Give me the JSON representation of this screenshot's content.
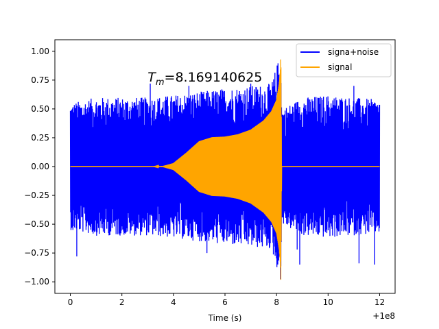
{
  "chart_data": {
    "type": "line",
    "title": "",
    "xlabel": "Time (s)",
    "ylabel": "",
    "x_offset_label": "+1e8",
    "xlim": [
      -0.6,
      12.6
    ],
    "ylim": [
      -1.1,
      1.1
    ],
    "x_ticks": [
      0,
      2,
      4,
      6,
      8,
      10,
      12
    ],
    "x_tick_labels": [
      "0",
      "2",
      "4",
      "6",
      "8",
      "10",
      "12"
    ],
    "y_ticks": [
      1.0,
      0.75,
      0.5,
      0.25,
      0.0,
      -0.25,
      -0.5,
      -0.75,
      -1.0
    ],
    "y_tick_labels": [
      "1.00",
      "0.75",
      "0.50",
      "0.25",
      "0.00",
      "−0.25",
      "−0.50",
      "−0.75",
      "−1.00"
    ],
    "annotation": {
      "symbol": "T",
      "subscript": "m",
      "value_text": "=8.169140625",
      "x": 3.0,
      "y": 0.78
    },
    "legend": {
      "placement": "top-right",
      "entries": [
        "signa+noise",
        "signal"
      ]
    },
    "series": [
      {
        "name": "signa+noise",
        "color": "#0000ff",
        "description": "Dense noisy oscillation from 0 to 12, amplitude mostly within ±0.5 with spikes to about ±0.75, plus the signal chirp",
        "x_range": [
          0,
          12
        ],
        "envelope_x": [
          0,
          1,
          2,
          3,
          4,
          5,
          6,
          7,
          7.8,
          8.17,
          8.2,
          9,
          10,
          11,
          12
        ],
        "envelope_upper": [
          0.55,
          0.6,
          0.6,
          0.6,
          0.62,
          0.65,
          0.68,
          0.7,
          0.72,
          1.0,
          0.5,
          0.6,
          0.62,
          0.6,
          0.58
        ],
        "envelope_lower": [
          -0.55,
          -0.6,
          -0.6,
          -0.6,
          -0.62,
          -0.65,
          -0.68,
          -0.7,
          -0.72,
          -1.0,
          -0.5,
          -0.6,
          -0.62,
          -0.6,
          -0.58
        ],
        "spikes": [
          {
            "x": 0.25,
            "y": -0.78
          },
          {
            "x": 0.1,
            "y": -0.55
          },
          {
            "x": 5.3,
            "y": -0.75
          },
          {
            "x": 8.8,
            "y": -0.72
          },
          {
            "x": 8.9,
            "y": -0.85
          },
          {
            "x": 11.2,
            "y": -0.84
          },
          {
            "x": 11.8,
            "y": -0.85
          },
          {
            "x": 3.1,
            "y": 0.72
          },
          {
            "x": 4.6,
            "y": 0.7
          },
          {
            "x": 7.0,
            "y": 0.72
          },
          {
            "x": 11.0,
            "y": 0.7
          }
        ]
      },
      {
        "name": "signal",
        "color": "#ffa500",
        "description": "Chirp starting around t=3.3, rising to ~0.25 amplitude near 5.5-6, then growing rapidly to ±1.0 at t≈8.17, zero afterwards",
        "x_range": [
          0,
          12
        ],
        "envelope_x": [
          0,
          3.2,
          3.6,
          4.0,
          4.5,
          5.0,
          5.5,
          6.0,
          6.5,
          7.0,
          7.5,
          7.8,
          8.0,
          8.1,
          8.15,
          8.169,
          8.2,
          12
        ],
        "envelope_amplitude": [
          0,
          0,
          0.005,
          0.03,
          0.12,
          0.22,
          0.255,
          0.26,
          0.28,
          0.32,
          0.4,
          0.48,
          0.58,
          0.72,
          0.85,
          1.0,
          0,
          0
        ]
      }
    ]
  }
}
